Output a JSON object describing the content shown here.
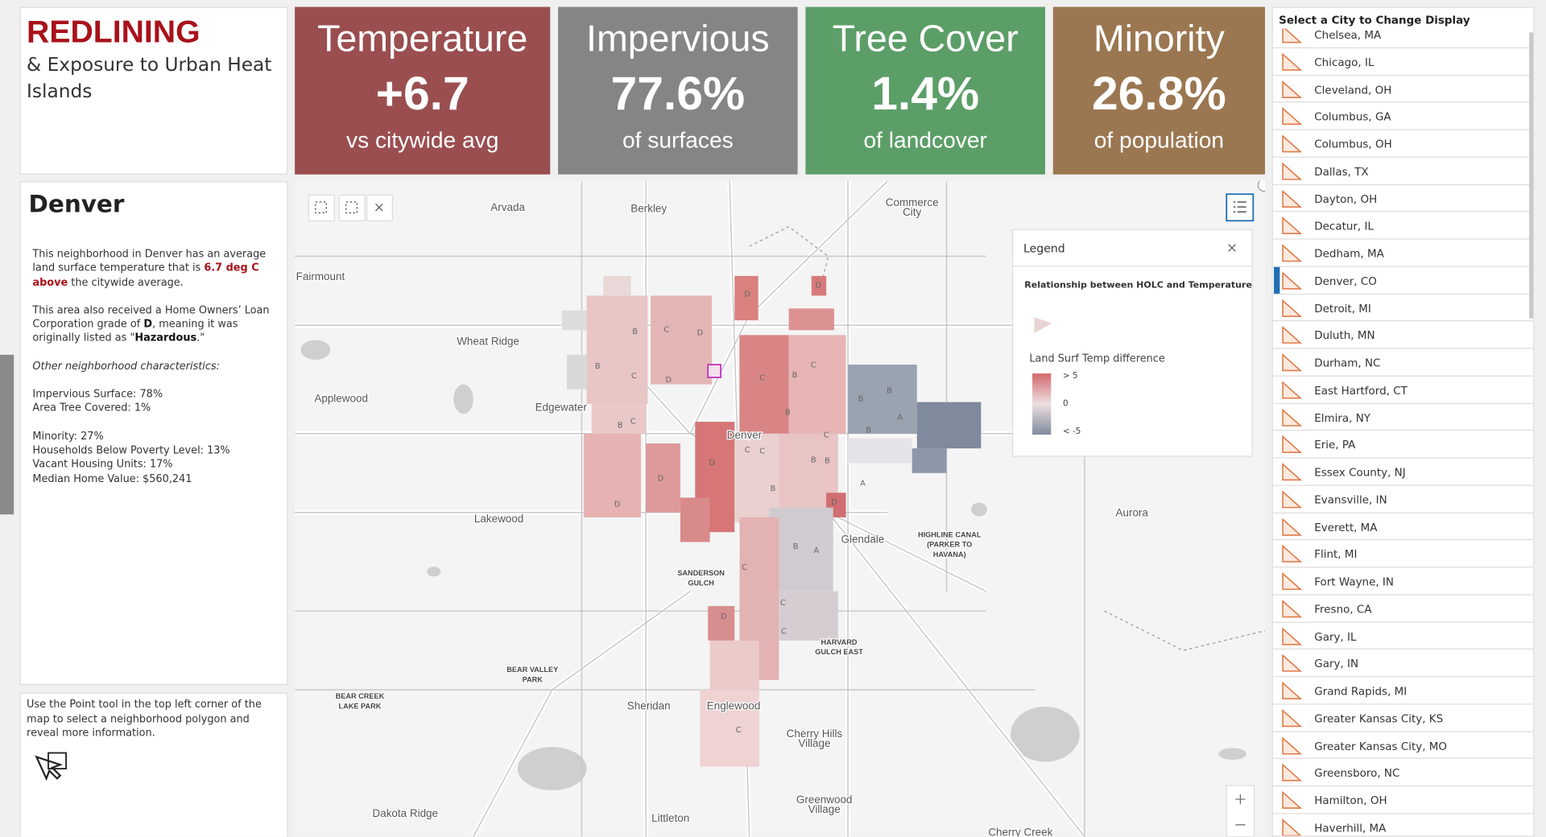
{
  "header": {
    "title": "REDLINING",
    "subtitle": "& Exposure to Urban Heat Islands"
  },
  "cards": [
    {
      "title": "Temperature",
      "value": "+6.7",
      "caption": "vs citywide avg",
      "color": "#9a4e50"
    },
    {
      "title": "Impervious",
      "value": "77.6%",
      "caption": "of surfaces",
      "color": "#858585"
    },
    {
      "title": "Tree Cover",
      "value": "1.4%",
      "caption": "of landcover",
      "color": "#5c9e67"
    },
    {
      "title": "Minority",
      "value": "26.8%",
      "caption": "of population",
      "color": "#9b7751"
    }
  ],
  "info": {
    "name": "Denver",
    "p1": [
      "This neighborhood in Denver has an average land surface temperature that is ",
      "6.7 deg C above",
      " the citywide average."
    ],
    "p2": [
      "This area also received a Home Owners’ Loan Corporation grade of ",
      "D",
      ", meaning it was originally listed as \"",
      "Hazardous",
      ".\""
    ],
    "other_heading": "Other neighborhood characteristics:",
    "stats1": [
      "Impervious Surface: 78%",
      "Area Tree Covered: 1%"
    ],
    "stats2": [
      "Minority: 27%",
      "Households Below Poverty Level: 13%",
      "Vacant Housing Units: 17%",
      "Median Home Value: $560,241"
    ]
  },
  "help": "Use the Point tool in the top left corner of the map to select a neighborhood polygon and reveal more information.",
  "city_list": {
    "header": "Select a City to Change Display",
    "selected": "Denver, CO",
    "items": [
      "Chelsea, MA",
      "Chicago, IL",
      "Cleveland, OH",
      "Columbus, GA",
      "Columbus, OH",
      "Dallas, TX",
      "Dayton, OH",
      "Decatur, IL",
      "Dedham, MA",
      "Denver, CO",
      "Detroit, MI",
      "Duluth, MN",
      "Durham, NC",
      "East Hartford, CT",
      "Elmira, NY",
      "Erie, PA",
      "Essex County, NJ",
      "Evansville, IN",
      "Everett, MA",
      "Flint, MI",
      "Fort Wayne, IN",
      "Fresno, CA",
      "Gary, IL",
      "Gary, IN",
      "Grand Rapids, MI",
      "Greater Kansas City, KS",
      "Greater Kansas City, MO",
      "Greensboro, NC",
      "Hamilton, OH",
      "Haverhill, MA"
    ]
  },
  "legend": {
    "title": "Legend",
    "layer": "Relationship between HOLC and Temperature",
    "field": "Land Surf Temp difference",
    "stops": [
      "> 5",
      "0",
      "< -5"
    ]
  },
  "map": {
    "labels": [
      "Arvada",
      "Berkley",
      [
        "Commerce",
        "City"
      ],
      "Fairmount",
      "Wheat Ridge",
      "Applewood",
      "Edgewater",
      "Denver",
      "Lakewood",
      "Aurora",
      "Glendale",
      "Sheridan",
      "Englewood",
      [
        "Cherry Hills",
        "Village"
      ],
      [
        "Greenwood",
        "Village"
      ],
      "Littleton",
      "Dakota Ridge",
      [
        "SANDERSON",
        "GULCH"
      ],
      [
        "HARVARD",
        "GULCH EAST"
      ],
      [
        "BEAR VALLEY",
        "PARK"
      ],
      [
        "BEAR CREEK",
        "LAKE PARK"
      ],
      [
        "HIGHLINE CANAL",
        "(PARKER TO",
        "HAVANA)"
      ],
      "Cherry Creek"
    ],
    "grades": [
      "D",
      "D",
      "B",
      "B",
      "C",
      "D",
      "C",
      "D",
      "C",
      "B",
      "C",
      "B",
      "C",
      "B",
      "D",
      "D",
      "C",
      "C",
      "B",
      "B",
      "A",
      "C",
      "D",
      "B",
      "B",
      "A",
      "B",
      "A",
      "D",
      "C",
      "B",
      "C",
      "B",
      "C",
      "D",
      "C"
    ]
  }
}
